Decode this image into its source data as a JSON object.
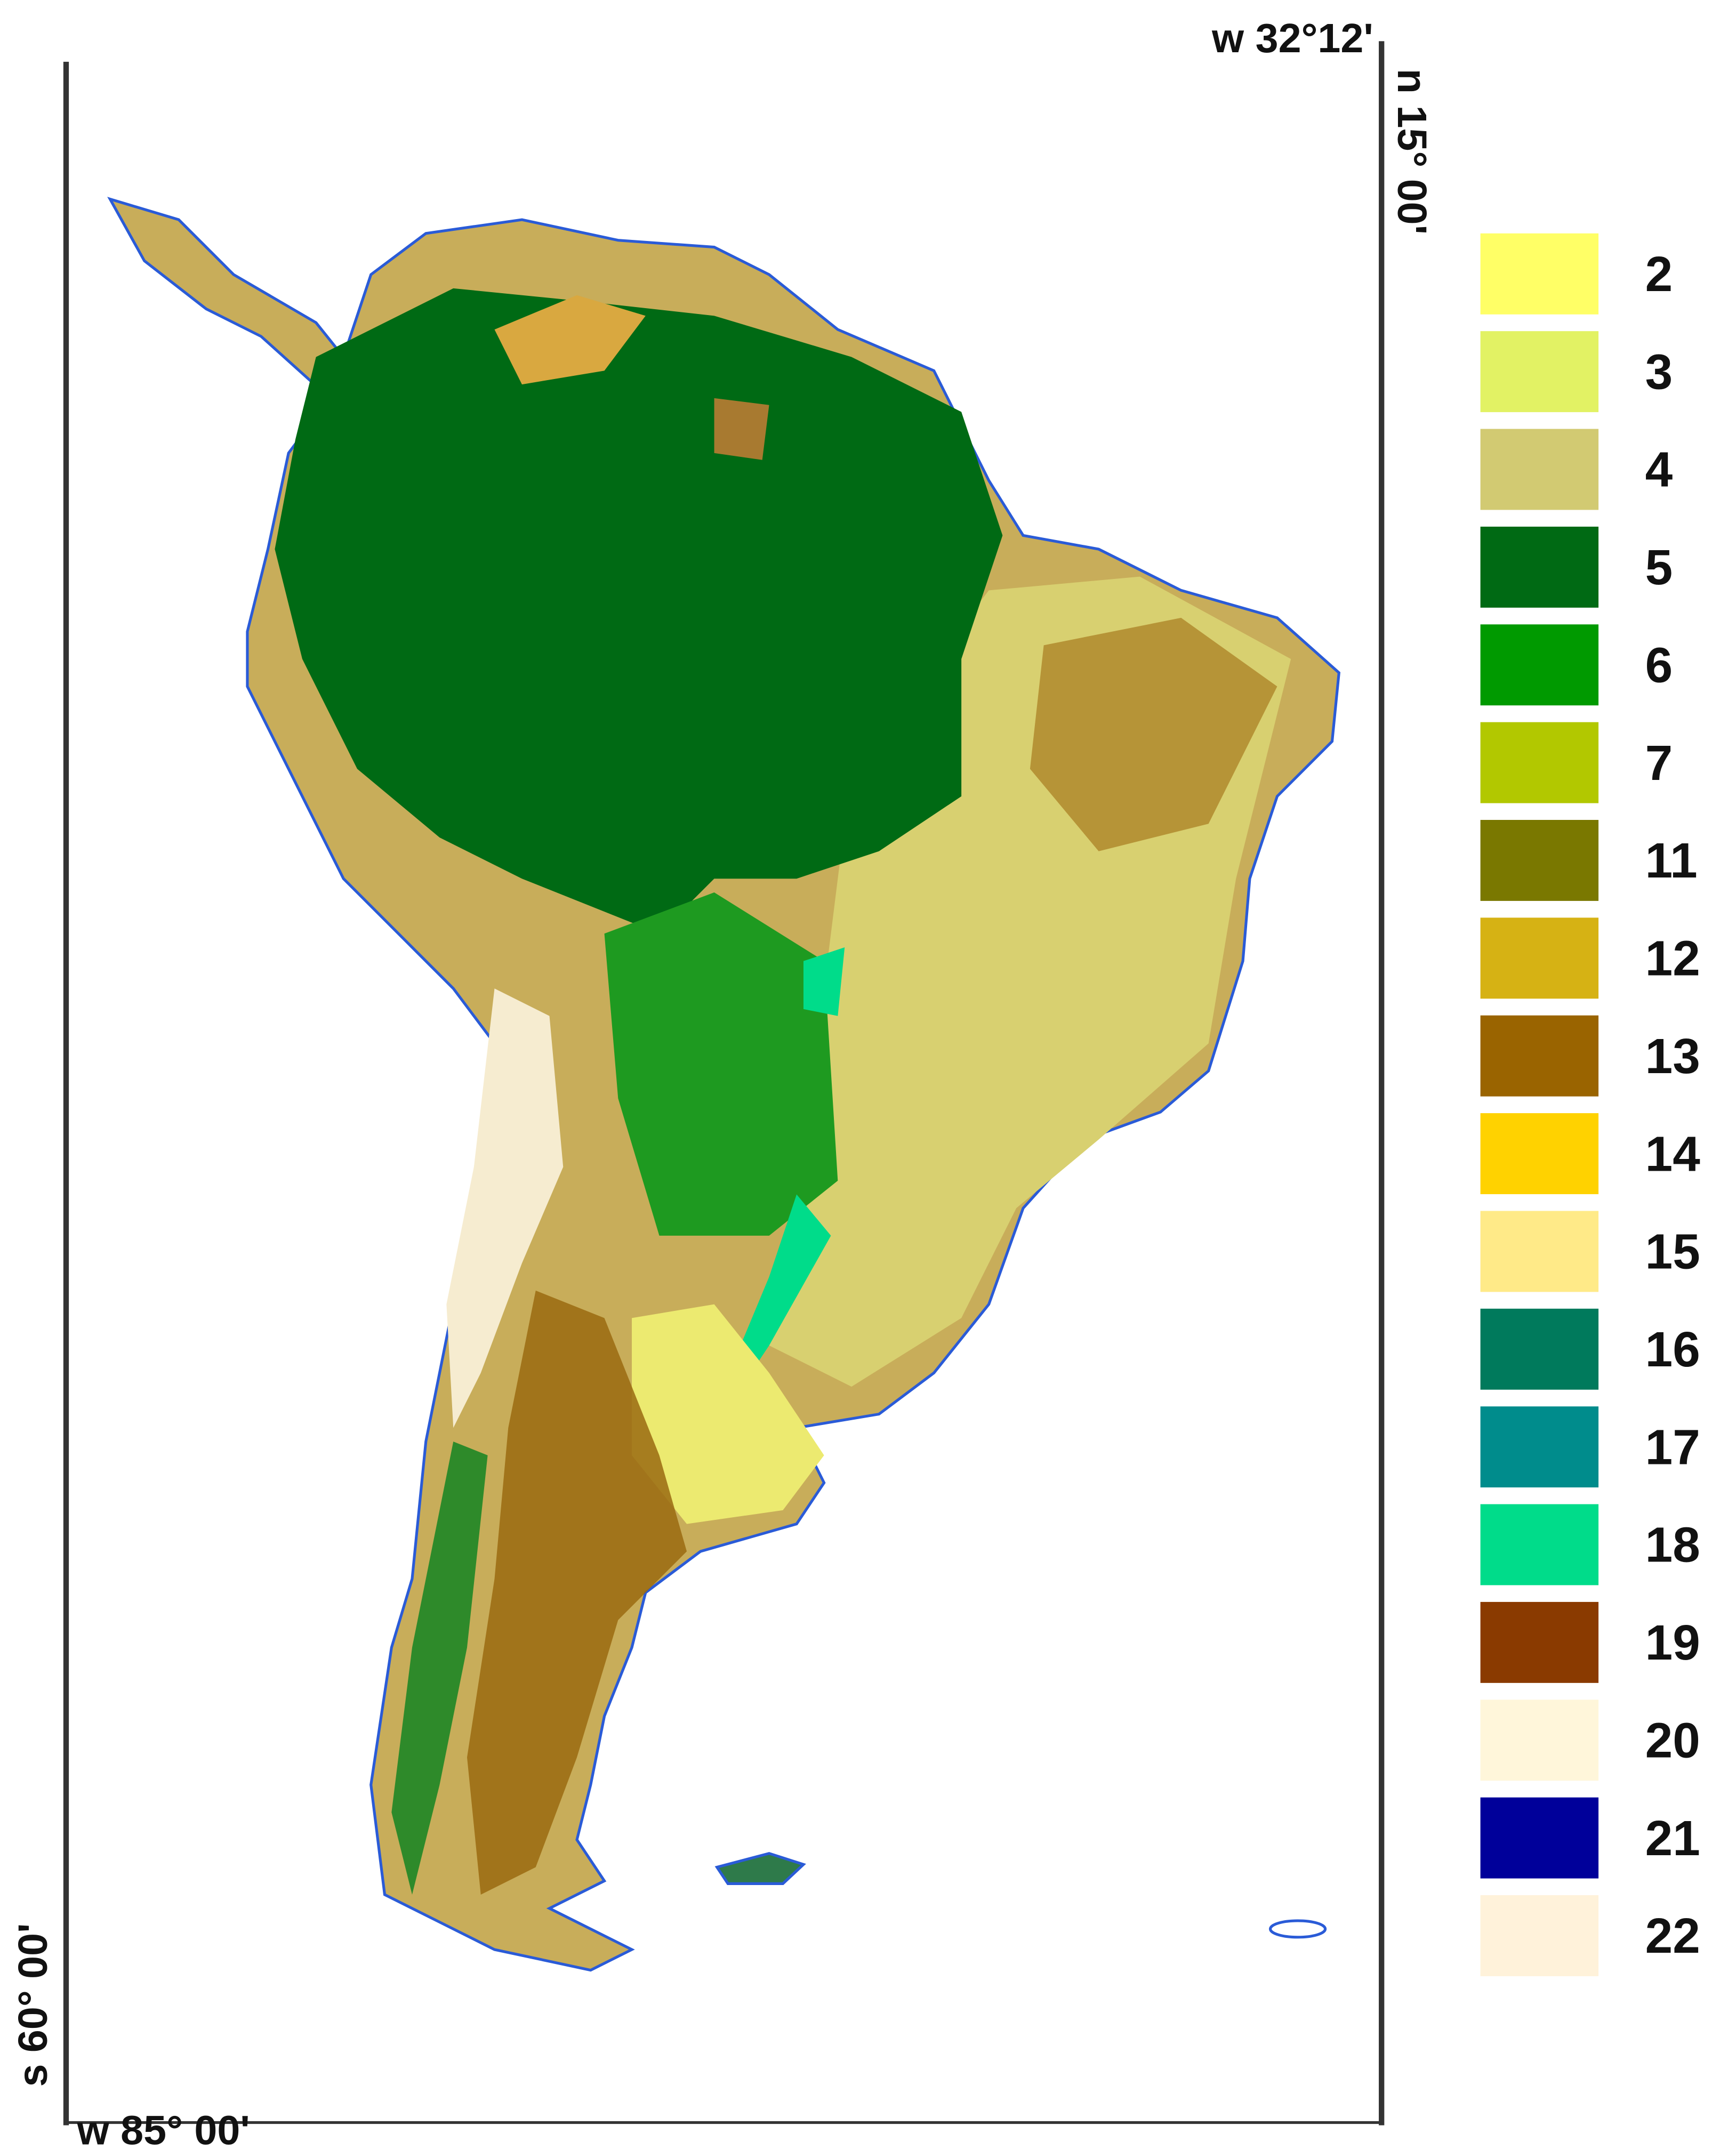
{
  "map": {
    "corner_labels": {
      "top_right": "w 32°12'",
      "right": "n 15° 00'",
      "left": "s 60° 00'",
      "bottom_left": "w 85° 00'"
    },
    "legend": [
      {
        "label": "2",
        "color": "#ffff66"
      },
      {
        "label": "3",
        "color": "#e2f264"
      },
      {
        "label": "4",
        "color": "#d2ca72"
      },
      {
        "label": "5",
        "color": "#006a14"
      },
      {
        "label": "6",
        "color": "#009a00"
      },
      {
        "label": "7",
        "color": "#b2c800"
      },
      {
        "label": "11",
        "color": "#7a7800"
      },
      {
        "label": "12",
        "color": "#d6b214"
      },
      {
        "label": "13",
        "color": "#9a6400"
      },
      {
        "label": "14",
        "color": "#ffd200"
      },
      {
        "label": "15",
        "color": "#ffea88"
      },
      {
        "label": "16",
        "color": "#007a5c"
      },
      {
        "label": "17",
        "color": "#008c8c"
      },
      {
        "label": "18",
        "color": "#00dc8a"
      },
      {
        "label": "19",
        "color": "#8a3a00"
      },
      {
        "label": "20",
        "color": "#fff6da"
      },
      {
        "label": "21",
        "color": "#00009a"
      },
      {
        "label": "22",
        "color": "#fff2da"
      }
    ]
  }
}
